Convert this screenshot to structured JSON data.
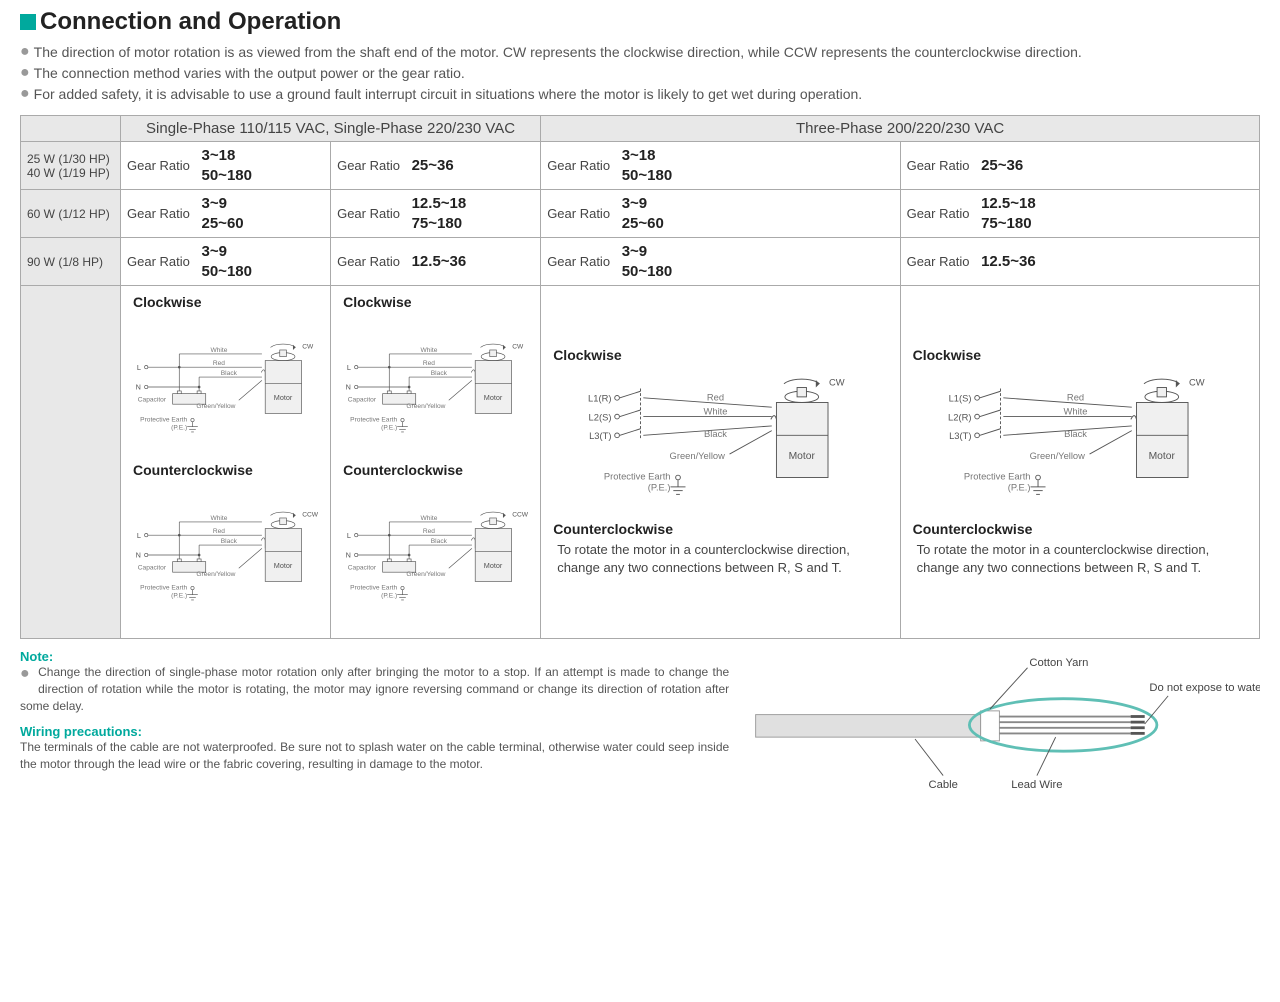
{
  "title": "Connection and Operation",
  "bullets": [
    "The direction of motor rotation is as viewed from the shaft end of the motor. CW represents the clockwise direction, while CCW represents the counterclockwise direction.",
    "The connection method varies with the output power or the gear ratio.",
    "For added safety, it is advisable to use a ground fault interrupt circuit in situations where the motor is likely to get wet during operation."
  ],
  "headers": {
    "single_phase": "Single-Phase 110/115 VAC, Single-Phase 220/230 VAC",
    "three_phase": "Three-Phase 200/220/230 VAC"
  },
  "row_labels": {
    "r1a": "25 W (1/30 HP)",
    "r1b": "40 W (1/19 HP)",
    "r2": "60 W (1/12 HP)",
    "r3": "90 W (1/8 HP)"
  },
  "gear_label": "Gear Ratio",
  "gear": {
    "r1c1a": "3~18",
    "r1c1b": "50~180",
    "r1c2": "25~36",
    "r1c3a": "3~18",
    "r1c3b": "50~180",
    "r1c4": "25~36",
    "r2c1a": "3~9",
    "r2c1b": "25~60",
    "r2c2a": "12.5~18",
    "r2c2b": "75~180",
    "r2c3a": "3~9",
    "r2c3b": "25~60",
    "r2c4a": "12.5~18",
    "r2c4b": "75~180",
    "r3c1a": "3~9",
    "r3c1b": "50~180",
    "r3c2": "12.5~36",
    "r3c3a": "3~9",
    "r3c3b": "50~180",
    "r3c4": "12.5~36"
  },
  "directions": {
    "cw": "Clockwise",
    "ccw": "Counterclockwise"
  },
  "rot_labels": {
    "cw": "CW",
    "ccw": "CCW"
  },
  "wire_labels": {
    "white": "White",
    "red": "Red",
    "black": "Black",
    "green_yellow": "Green/Yellow",
    "motor": "Motor",
    "capacitor": "Capacitor",
    "pe1": "Protective Earth",
    "pe2": "(P.E.)",
    "L": "L",
    "N": "N",
    "L1R": "L1(R)",
    "L2S": "L2(S)",
    "L3T": "L3(T)",
    "L1S": "L1(S)",
    "L2R": "L2(R)"
  },
  "ccw_note": "To rotate the motor in a counterclockwise direction, change any two connections between R, S and T.",
  "notes": {
    "note_hdr": "Note:",
    "note_body": "Change the direction of single-phase motor rotation only after bringing the motor to a stop. If an attempt is made to change the direction of rotation while the motor is rotating, the motor may ignore reversing command or change its direction of rotation after some delay.",
    "wiring_hdr": "Wiring precautions:",
    "wiring_body": "The terminals of the cable are not waterproofed. Be sure not to splash water on the cable terminal, otherwise water could seep inside the motor through the lead wire or the fabric covering, resulting in damage to the motor."
  },
  "cable_labels": {
    "cotton_yarn": "Cotton Yarn",
    "cable": "Cable",
    "lead_wire": "Lead Wire",
    "no_water": "Do not expose to water"
  },
  "colors": {
    "accent": "#00a99d",
    "motor_fill": "#f0f0f0",
    "motor_stroke": "#555",
    "cable_fill": "#e0e0e0",
    "ellipse_stroke": "#5fbfb5"
  }
}
